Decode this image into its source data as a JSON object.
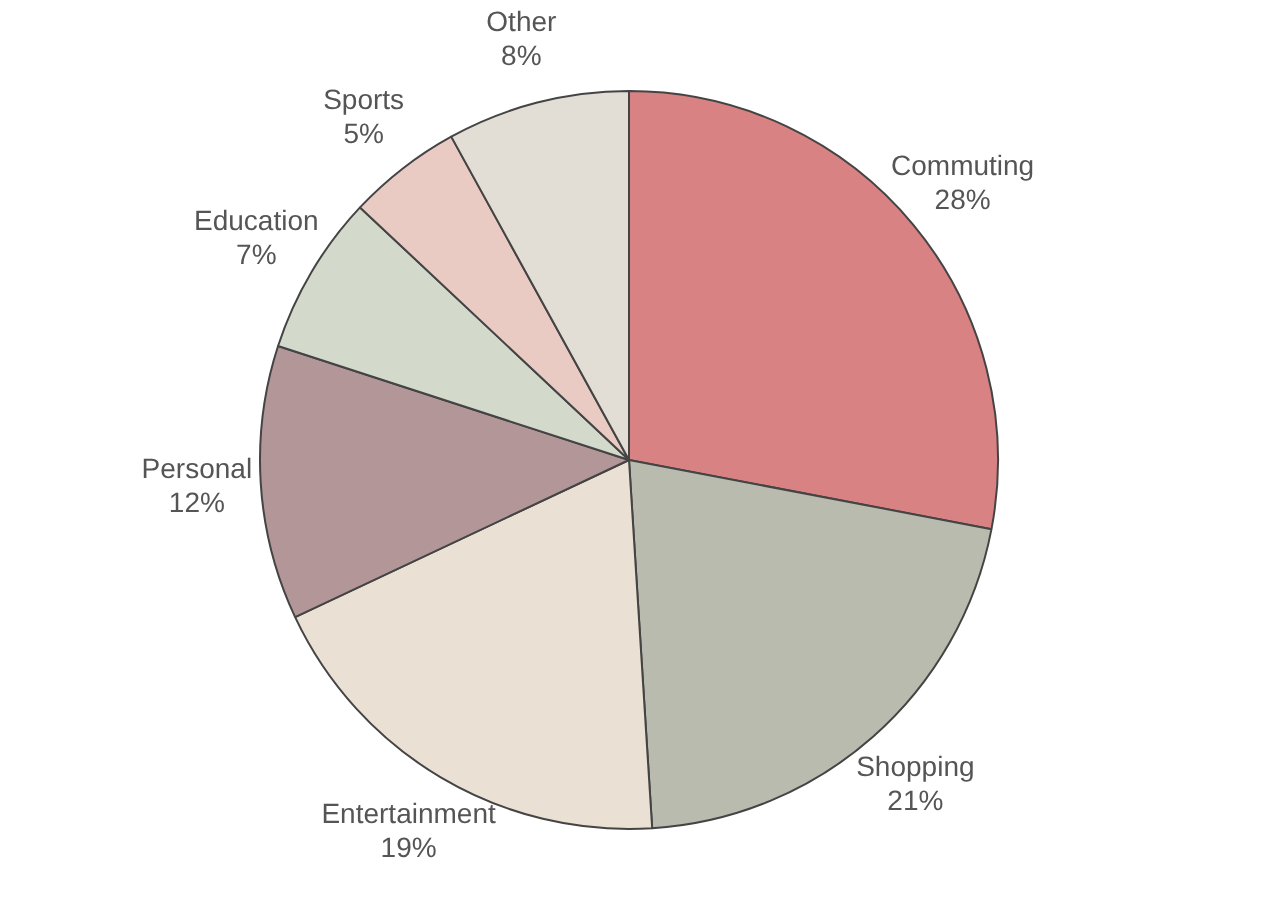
{
  "chart_data": {
    "type": "pie",
    "categories": [
      "Commuting",
      "Shopping",
      "Entertainment",
      "Personal",
      "Education",
      "Sports",
      "Other"
    ],
    "values": [
      28,
      21,
      19,
      12,
      7,
      5,
      8
    ],
    "value_labels": [
      "28%",
      "21%",
      "19%",
      "12%",
      "7%",
      "5%",
      "8%"
    ],
    "colors": [
      "#d98283",
      "#b9bbae",
      "#ebe0d4",
      "#b39697",
      "#d3dacb",
      "#e9cbc4",
      "#e2ddd5"
    ],
    "legend": false
  }
}
